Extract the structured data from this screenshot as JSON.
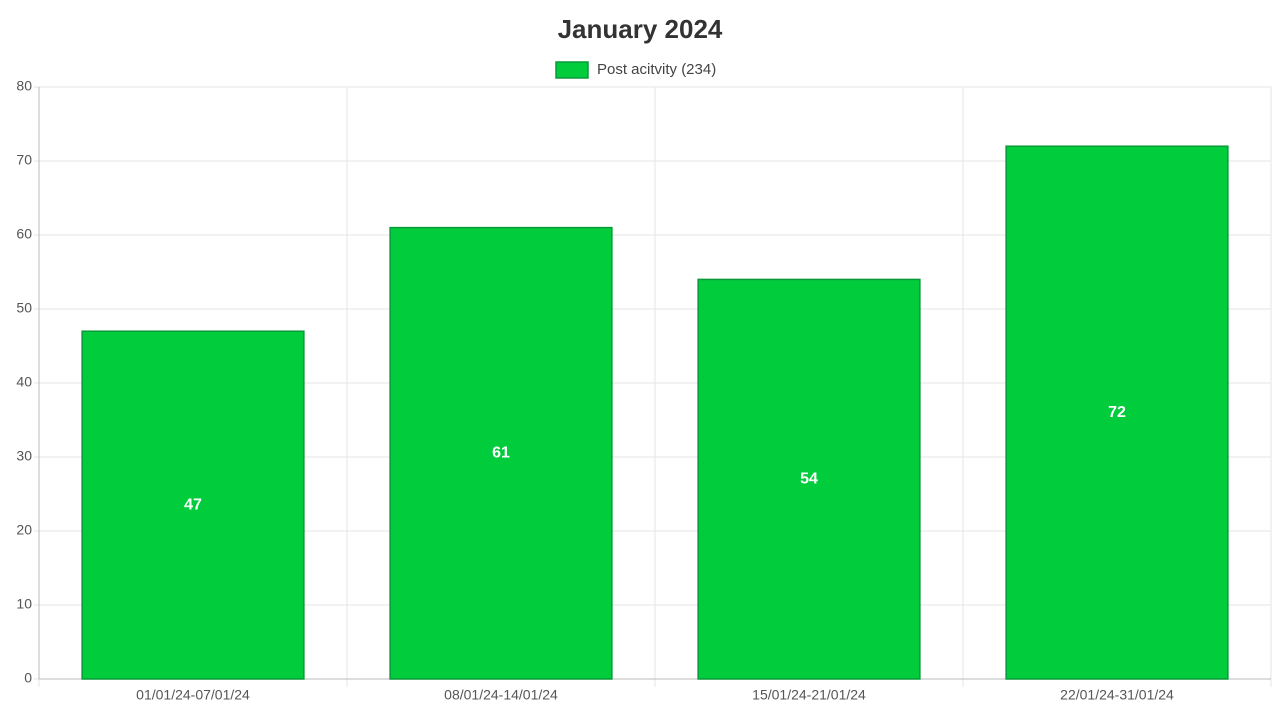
{
  "chart_data": {
    "type": "bar",
    "title": "January 2024",
    "categories": [
      "01/01/24-07/01/24",
      "08/01/24-14/01/24",
      "15/01/24-21/01/24",
      "22/01/24-31/01/24"
    ],
    "series": [
      {
        "name": "Post acitvity (234)",
        "color": "#00cc3c",
        "values": [
          47,
          61,
          54,
          72
        ]
      }
    ],
    "ylim": [
      0,
      80
    ],
    "yticks": [
      0,
      10,
      20,
      30,
      40,
      50,
      60,
      70,
      80
    ],
    "grid": true,
    "legend": "top"
  }
}
